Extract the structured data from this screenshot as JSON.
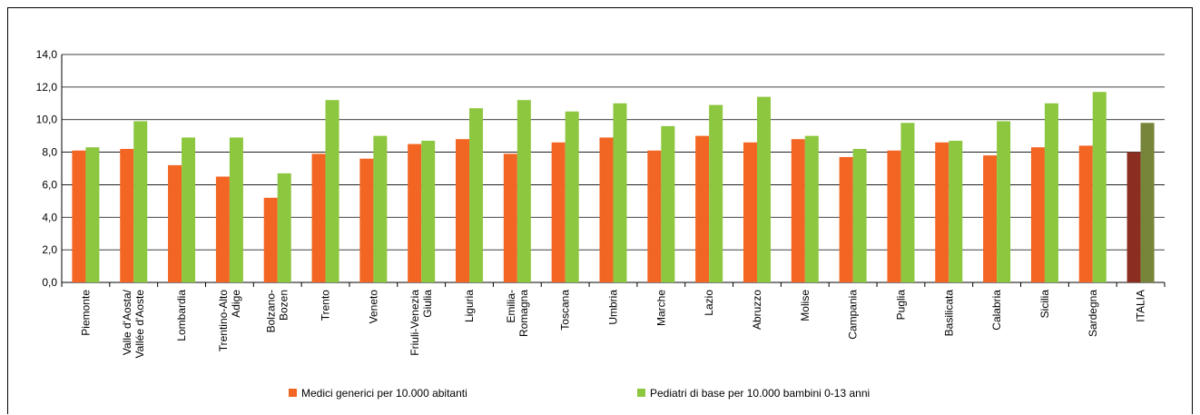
{
  "chart_data": {
    "type": "bar",
    "categories": [
      "Piemonte",
      "Valle d'Aosta/\nVallée d'Aoste",
      "Lombardia",
      "Trentino-Alto\nAdige",
      "Bolzano-\nBozen",
      "Trento",
      "Veneto",
      "Friuli-Venezia\nGiulia",
      "Liguria",
      "Emilia-\nRomagna",
      "Toscana",
      "Umbria",
      "Marche",
      "Lazio",
      "Abruzzo",
      "Molise",
      "Campania",
      "Puglia",
      "Basilicata",
      "Calabria",
      "Sicilia",
      "Sardegna",
      "ITALIA"
    ],
    "series": [
      {
        "name": "Medici generici per 10.000 abitanti",
        "color": "#f26522",
        "highlight_color": "#8b2e1f",
        "values": [
          8.1,
          8.2,
          7.2,
          6.5,
          5.2,
          7.9,
          7.6,
          8.5,
          8.8,
          7.9,
          8.6,
          8.9,
          8.1,
          9.0,
          8.6,
          8.8,
          7.7,
          8.1,
          8.6,
          7.8,
          8.3,
          8.4,
          8.0
        ]
      },
      {
        "name": "Pediatri di base per 10.000 bambini 0-13 anni",
        "color": "#8dc63f",
        "highlight_color": "#76853a",
        "values": [
          8.3,
          9.9,
          8.9,
          8.9,
          6.7,
          11.2,
          9.0,
          8.7,
          10.7,
          11.2,
          10.5,
          11.0,
          9.6,
          10.9,
          11.4,
          9.0,
          8.2,
          9.8,
          8.7,
          9.9,
          11.0,
          11.7,
          9.8
        ]
      }
    ],
    "ylim": [
      0,
      14
    ],
    "yticks": [
      "0,0",
      "2,0",
      "4,0",
      "6,0",
      "8,0",
      "10,0",
      "12,0",
      "14,0"
    ],
    "highlight_category": "ITALIA",
    "legend_position": "bottom",
    "grid": true
  }
}
